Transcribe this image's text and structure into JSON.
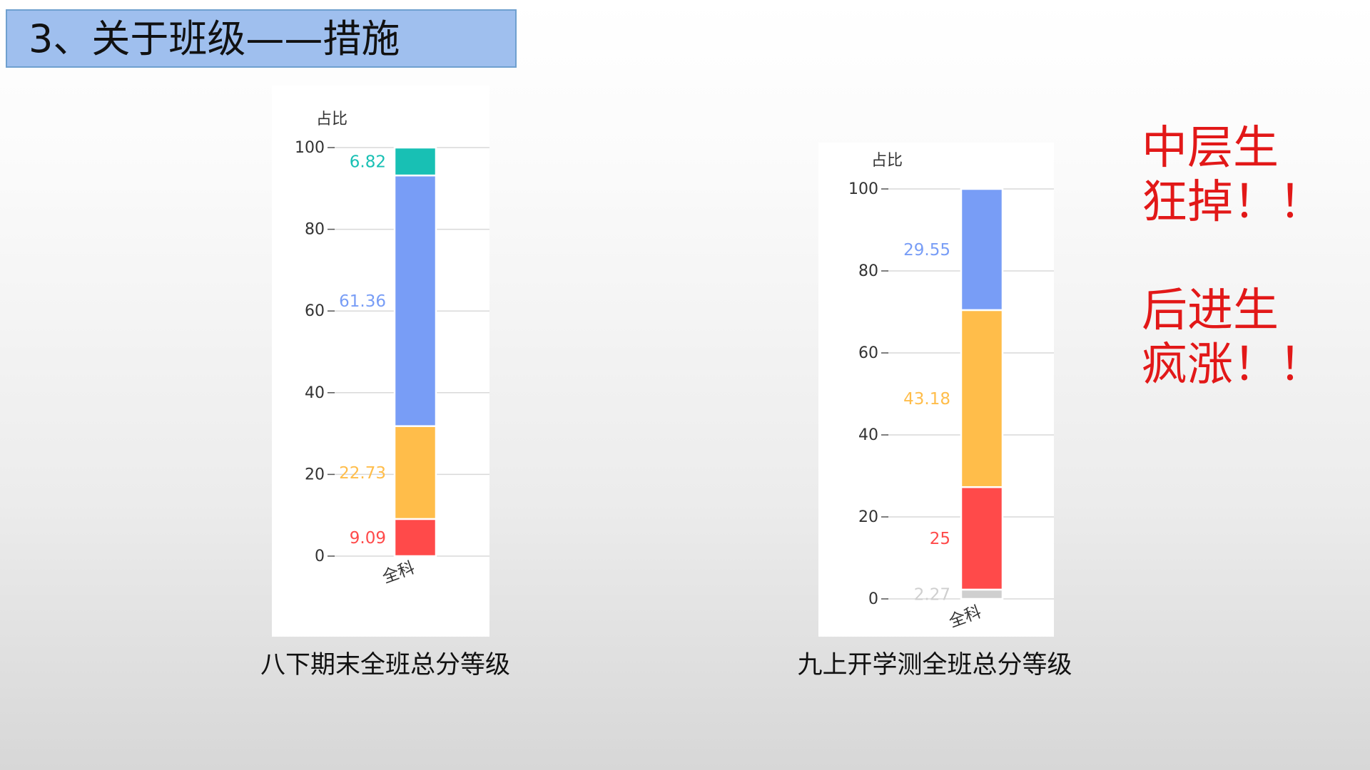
{
  "title": "3、关于班级——措施",
  "annotations": [
    {
      "line1": "中层生",
      "line2": "狂掉！！"
    },
    {
      "line1": "后进生",
      "line2": "疯涨！！"
    }
  ],
  "captions": [
    "八下期末全班总分等级",
    "九上开学测全班总分等级"
  ],
  "colors": {
    "teal": "#18c0b4",
    "blue": "#789df6",
    "orange": "#ffbd4a",
    "red": "#ff4a4a",
    "gray": "#cfcfcf",
    "annotation": "#e21818"
  },
  "chart_data": [
    {
      "type": "bar",
      "stacked": true,
      "ylabel": "占比",
      "categories": [
        "全科"
      ],
      "ylim": [
        0,
        100
      ],
      "yticks": [
        0,
        20,
        40,
        60,
        80,
        100
      ],
      "grid": true,
      "series": [
        {
          "values": [
            9.09
          ],
          "label": "9.09",
          "color": "#ff4a4a"
        },
        {
          "values": [
            22.73
          ],
          "label": "22.73",
          "color": "#ffbd4a"
        },
        {
          "values": [
            61.36
          ],
          "label": "61.36",
          "color": "#789df6"
        },
        {
          "values": [
            6.82
          ],
          "label": "6.82",
          "color": "#18c0b4"
        }
      ]
    },
    {
      "type": "bar",
      "stacked": true,
      "ylabel": "占比",
      "categories": [
        "全科"
      ],
      "ylim": [
        0,
        100
      ],
      "yticks": [
        0,
        20,
        40,
        60,
        80,
        100
      ],
      "grid": true,
      "series": [
        {
          "values": [
            2.27
          ],
          "label": "2.27",
          "color": "#cfcfcf"
        },
        {
          "values": [
            25
          ],
          "label": "25",
          "color": "#ff4a4a"
        },
        {
          "values": [
            43.18
          ],
          "label": "43.18",
          "color": "#ffbd4a"
        },
        {
          "values": [
            29.55
          ],
          "label": "29.55",
          "color": "#789df6"
        }
      ]
    }
  ]
}
